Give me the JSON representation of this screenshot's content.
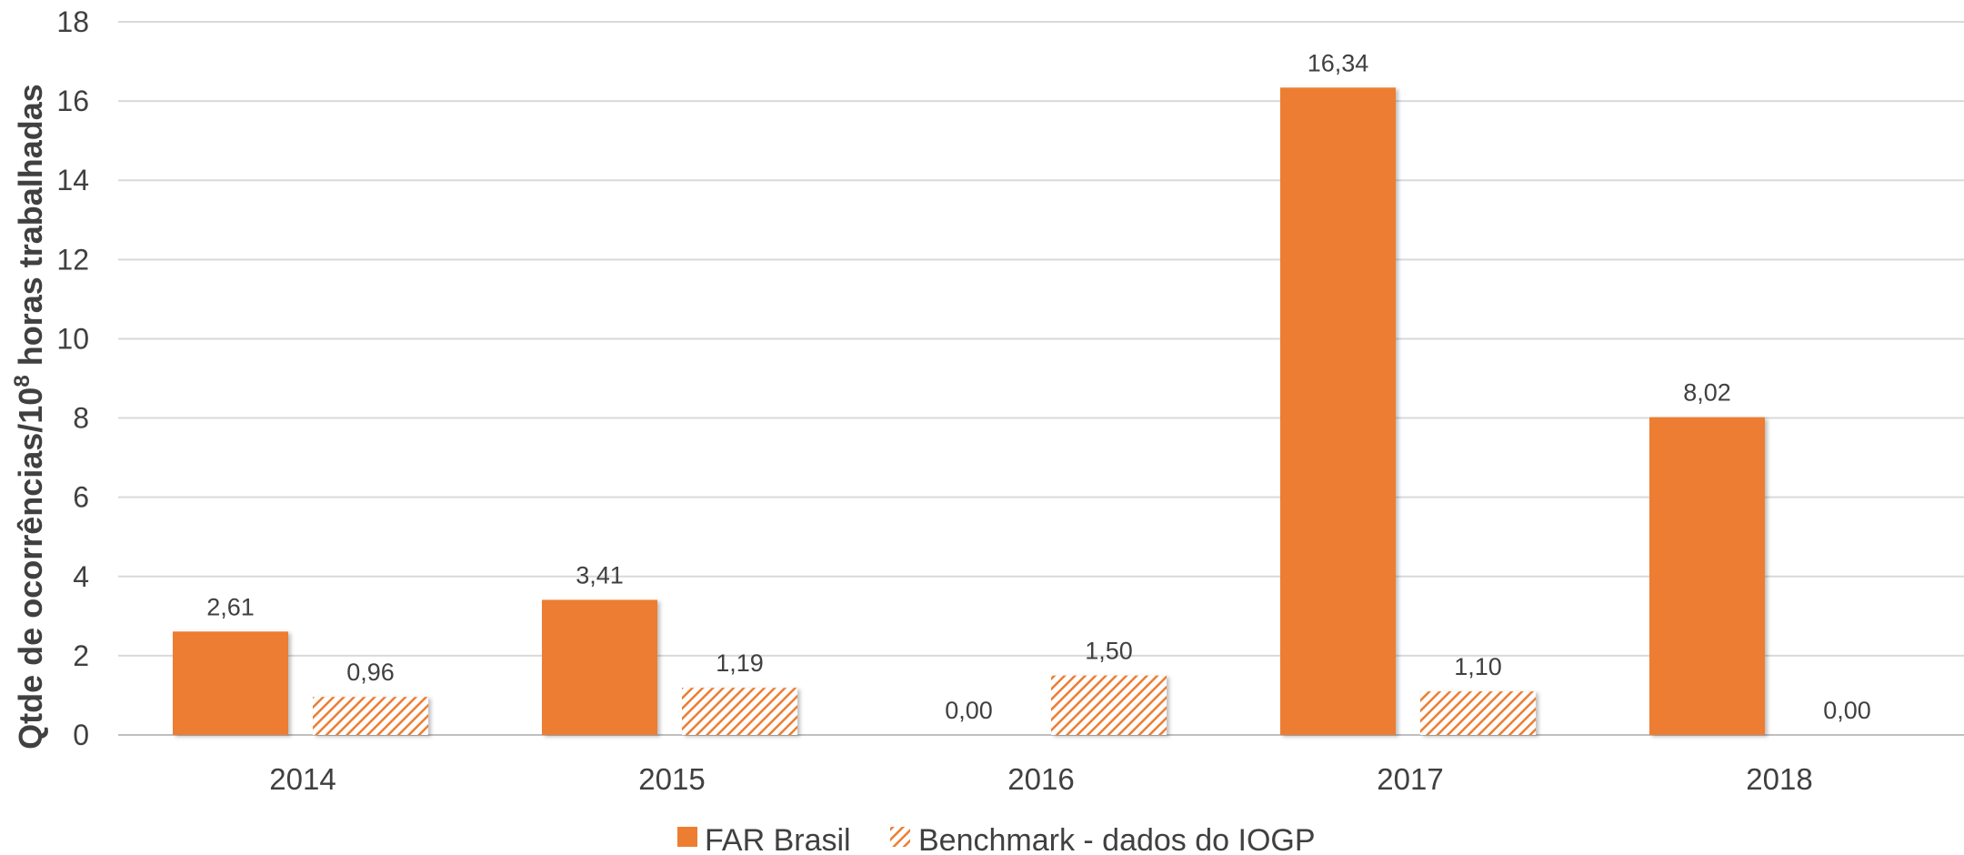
{
  "chart_data": {
    "type": "bar",
    "categories": [
      "2014",
      "2015",
      "2016",
      "2017",
      "2018"
    ],
    "series": [
      {
        "name": "FAR Brasil",
        "values": [
          2.61,
          3.41,
          0.0,
          16.34,
          8.02
        ],
        "labels": [
          "2,61",
          "3,41",
          "0,00",
          "16,34",
          "8,02"
        ],
        "color": "#ED7D31",
        "fill": "solid"
      },
      {
        "name": "Benchmark - dados do IOGP",
        "values": [
          0.96,
          1.19,
          1.5,
          1.1,
          0.0
        ],
        "labels": [
          "0,96",
          "1,19",
          "1,50",
          "1,10",
          "0,00"
        ],
        "color": "#ED7D31",
        "fill": "hatched"
      }
    ],
    "ylabel_main": "Qtde de ocorrências/10",
    "ylabel_sup": "8",
    "ylabel_end": " horas trabalhadas",
    "xlabel": "",
    "ylim": [
      0,
      18
    ],
    "yticks": [
      "0",
      "2",
      "4",
      "6",
      "8",
      "10",
      "12",
      "14",
      "16",
      "18"
    ],
    "grid": true,
    "legend_position": "bottom",
    "colors": {
      "bar": "#ED7D31",
      "grid": "#D9D9D9",
      "axis": "#BFBFBF",
      "text": "#404040"
    }
  }
}
